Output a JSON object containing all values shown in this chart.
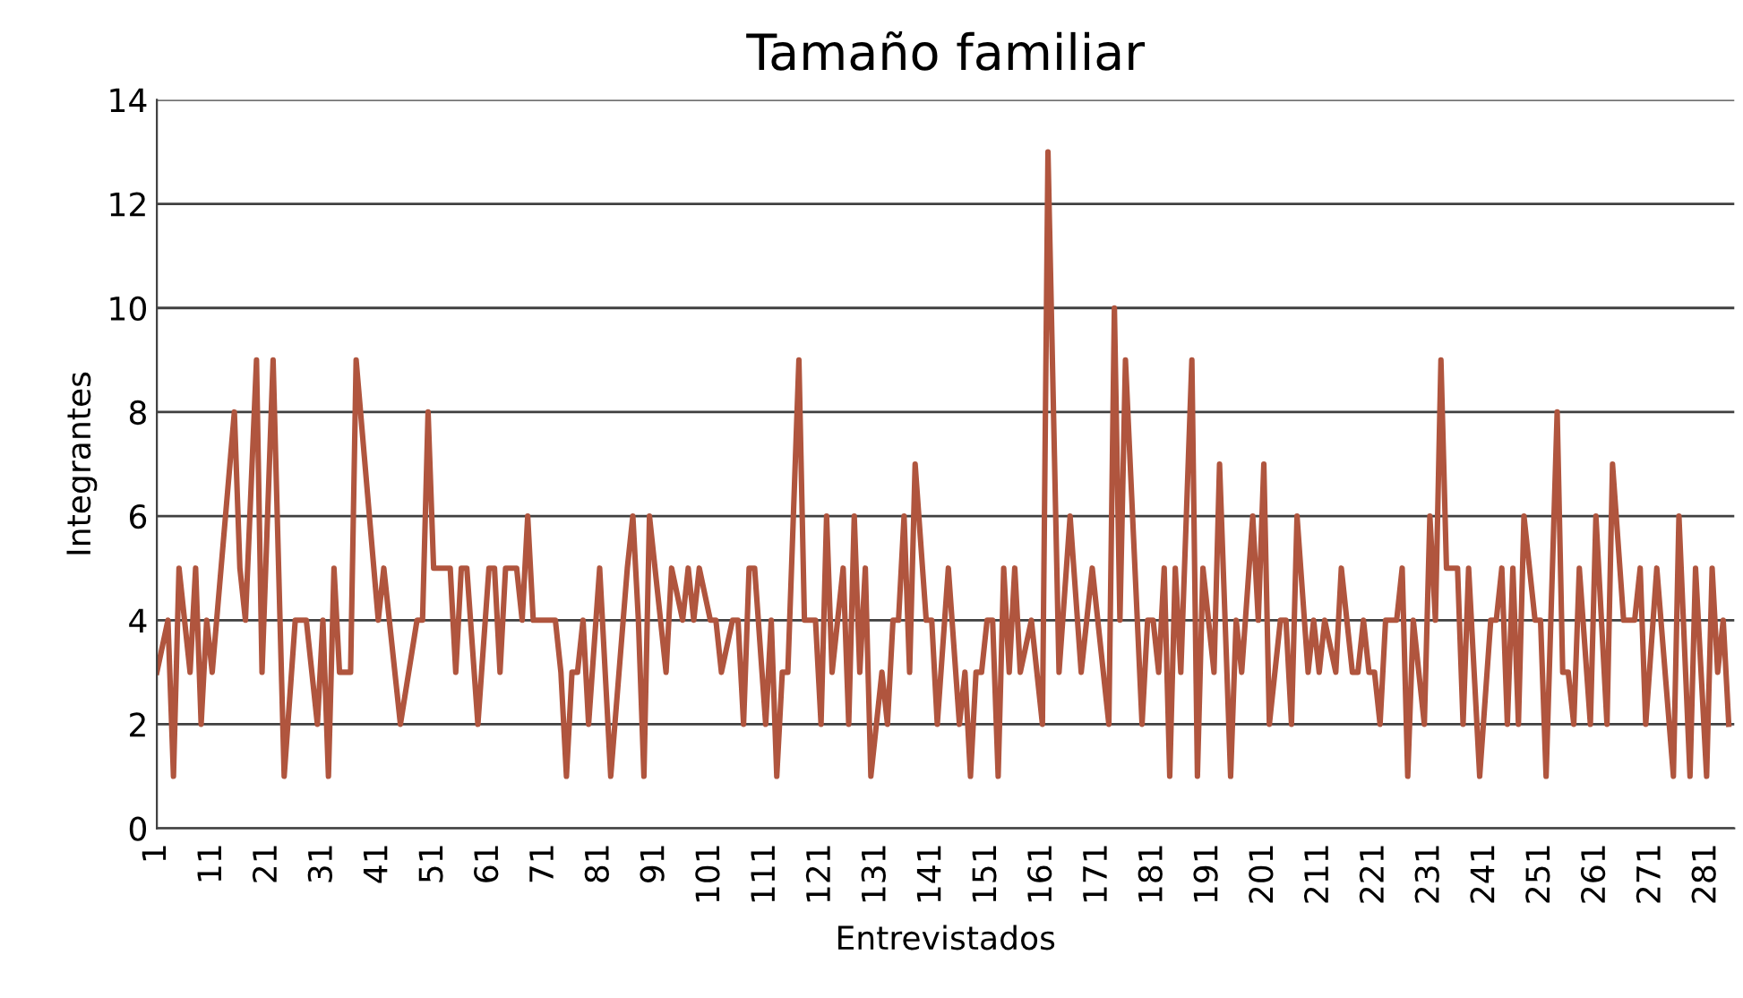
{
  "chart_data": {
    "type": "line",
    "title": "Tamaño familiar",
    "xlabel": "Entrevistados",
    "ylabel": "Integrantes",
    "xlim": [
      1,
      286
    ],
    "xticks": [
      1,
      11,
      21,
      31,
      41,
      51,
      61,
      71,
      81,
      91,
      101,
      111,
      121,
      131,
      141,
      151,
      161,
      171,
      181,
      191,
      201,
      211,
      221,
      231,
      241,
      251,
      261,
      271,
      281
    ],
    "ylim": [
      0,
      14
    ],
    "yticks": [
      0,
      2,
      4,
      6,
      8,
      10,
      12,
      14
    ],
    "grid": "y",
    "marker": "none",
    "line_style": "solid",
    "series": [
      {
        "color": "#b0553e",
        "x": [
          1,
          3,
          4,
          5,
          7,
          8,
          9,
          10,
          11,
          15,
          16,
          17,
          19,
          20,
          22,
          24,
          26,
          28,
          30,
          31,
          32,
          33,
          34,
          36,
          37,
          41,
          42,
          45,
          48,
          49,
          50,
          51,
          54,
          55,
          56,
          57,
          59,
          61,
          62,
          63,
          64,
          66,
          67,
          68,
          69,
          73,
          74,
          75,
          76,
          77,
          78,
          79,
          81,
          83,
          86,
          87,
          88,
          89,
          90,
          92,
          93,
          94,
          96,
          97,
          98,
          99,
          101,
          102,
          103,
          105,
          106,
          107,
          108,
          109,
          111,
          112,
          113,
          114,
          115,
          117,
          118,
          120,
          121,
          122,
          123,
          124,
          125,
          126,
          127,
          128,
          129,
          130,
          132,
          133,
          134,
          135,
          136,
          137,
          138,
          140,
          141,
          142,
          144,
          146,
          147,
          148,
          149,
          150,
          151,
          152,
          153,
          154,
          155,
          156,
          157,
          159,
          161,
          162,
          164,
          166,
          168,
          170,
          173,
          174,
          175,
          176,
          179,
          180,
          181,
          182,
          183,
          184,
          185,
          186,
          188,
          189,
          190,
          192,
          193,
          195,
          196,
          197,
          199,
          200,
          201,
          202,
          204,
          205,
          206,
          207,
          209,
          210,
          211,
          212,
          214,
          215,
          217,
          218,
          219,
          220,
          221,
          222,
          223,
          225,
          226,
          227,
          228,
          230,
          231,
          232,
          233,
          234,
          236,
          237,
          238,
          240,
          242,
          243,
          244,
          245,
          246,
          247,
          248,
          250,
          251,
          252,
          254,
          255,
          256,
          257,
          258,
          260,
          261,
          263,
          264,
          266,
          268,
          269,
          270,
          272,
          275,
          276,
          278,
          279,
          281,
          282,
          283,
          284,
          285
        ],
        "values": [
          3,
          4,
          1,
          5,
          3,
          5,
          2,
          4,
          3,
          8,
          5,
          4,
          9,
          3,
          9,
          1,
          4,
          4,
          2,
          4,
          1,
          5,
          3,
          3,
          9,
          4,
          5,
          2,
          4,
          4,
          8,
          5,
          5,
          3,
          5,
          5,
          2,
          5,
          5,
          3,
          5,
          5,
          4,
          6,
          4,
          4,
          3,
          1,
          3,
          3,
          4,
          2,
          5,
          1,
          5,
          6,
          4,
          1,
          6,
          4,
          3,
          5,
          4,
          5,
          4,
          5,
          4,
          4,
          3,
          4,
          4,
          2,
          5,
          5,
          2,
          4,
          1,
          3,
          3,
          9,
          4,
          4,
          2,
          6,
          3,
          4,
          5,
          2,
          6,
          3,
          5,
          1,
          3,
          2,
          4,
          4,
          6,
          3,
          7,
          4,
          4,
          2,
          5,
          2,
          3,
          1,
          3,
          3,
          4,
          4,
          1,
          5,
          3,
          5,
          3,
          4,
          2,
          13,
          3,
          6,
          3,
          5,
          2,
          10,
          4,
          9,
          2,
          4,
          4,
          3,
          5,
          1,
          5,
          3,
          9,
          1,
          5,
          3,
          7,
          1,
          4,
          3,
          6,
          4,
          7,
          2,
          4,
          4,
          2,
          6,
          3,
          4,
          3,
          4,
          3,
          5,
          3,
          3,
          4,
          3,
          3,
          2,
          4,
          4,
          5,
          1,
          4,
          2,
          6,
          4,
          9,
          5,
          5,
          2,
          5,
          1,
          4,
          4,
          5,
          2,
          5,
          2,
          6,
          4,
          4,
          1,
          8,
          3,
          3,
          2,
          5,
          2,
          6,
          2,
          7,
          4,
          4,
          5,
          2,
          5,
          1,
          6,
          1,
          5,
          1,
          5,
          3,
          4,
          2
        ]
      }
    ]
  }
}
